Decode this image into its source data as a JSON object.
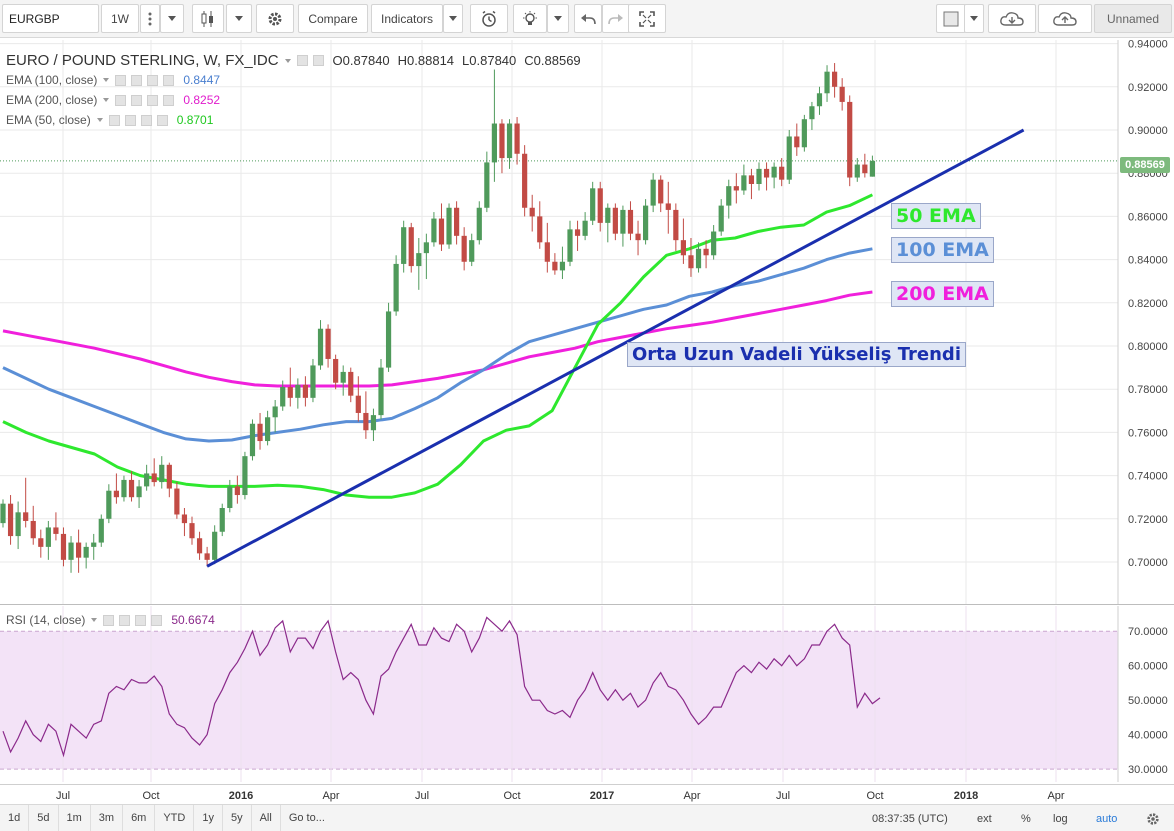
{
  "toolbar": {
    "symbol": "EURGBP",
    "interval": "1W",
    "compare_label": "Compare",
    "indicators_label": "Indicators",
    "layout_name": "Unnamed"
  },
  "legend": {
    "title": "EURO / POUND STERLING, W, FX_IDC",
    "open": "O0.87840",
    "high": "H0.88814",
    "low": "L0.87840",
    "close": "C0.88569",
    "ema100_label": "EMA (100, close)",
    "ema100_value": "0.8447",
    "ema200_label": "EMA (200, close)",
    "ema200_value": "0.8252",
    "ema50_label": "EMA (50, close)",
    "ema50_value": "0.8701",
    "rsi_label": "RSI (14, close)",
    "rsi_value": "50.6674"
  },
  "last_price_tag": "0.88569",
  "annotations": {
    "ema50": "50 EMA",
    "ema100": "100 EMA",
    "ema200": "200 EMA",
    "trend": "Orta Uzun Vadeli Yükseliş Trendi"
  },
  "colors": {
    "up": "#4f9a5b",
    "down": "#c24b45",
    "ema50": "#2ee82e",
    "ema100": "#5b8fd6",
    "ema200": "#f020dc",
    "trendline": "#1a2fae",
    "rsi_line": "#8b2a8b",
    "rsi_band": "#f3e3f7"
  },
  "chart_data": [
    {
      "type": "candlestick",
      "title": "EURO / POUND STERLING, W, FX_IDC",
      "x_tick_labels": [
        "Jul",
        "Oct",
        "2016",
        "Apr",
        "Jul",
        "Oct",
        "2017",
        "Apr",
        "Jul",
        "Oct",
        "2018",
        "Apr"
      ],
      "y_tick_labels": [
        "0.70000",
        "0.72000",
        "0.74000",
        "0.76000",
        "0.78000",
        "0.80000",
        "0.82000",
        "0.84000",
        "0.86000",
        "0.88000",
        "0.90000",
        "0.92000",
        "0.94000"
      ],
      "ylim": [
        0.69,
        0.945
      ],
      "ohlc": [
        [
          0.718,
          0.729,
          0.716,
          0.727
        ],
        [
          0.727,
          0.731,
          0.708,
          0.712
        ],
        [
          0.712,
          0.728,
          0.706,
          0.723
        ],
        [
          0.723,
          0.739,
          0.716,
          0.719
        ],
        [
          0.719,
          0.726,
          0.708,
          0.711
        ],
        [
          0.711,
          0.715,
          0.702,
          0.707
        ],
        [
          0.707,
          0.719,
          0.701,
          0.716
        ],
        [
          0.716,
          0.723,
          0.71,
          0.713
        ],
        [
          0.713,
          0.716,
          0.698,
          0.701
        ],
        [
          0.701,
          0.712,
          0.695,
          0.709
        ],
        [
          0.709,
          0.715,
          0.695,
          0.702
        ],
        [
          0.702,
          0.709,
          0.697,
          0.707
        ],
        [
          0.707,
          0.713,
          0.701,
          0.709
        ],
        [
          0.709,
          0.722,
          0.707,
          0.72
        ],
        [
          0.72,
          0.736,
          0.718,
          0.733
        ],
        [
          0.733,
          0.741,
          0.727,
          0.73
        ],
        [
          0.73,
          0.74,
          0.728,
          0.738
        ],
        [
          0.738,
          0.742,
          0.728,
          0.73
        ],
        [
          0.73,
          0.738,
          0.725,
          0.735
        ],
        [
          0.735,
          0.745,
          0.733,
          0.741
        ],
        [
          0.741,
          0.748,
          0.735,
          0.737
        ],
        [
          0.737,
          0.749,
          0.734,
          0.745
        ],
        [
          0.745,
          0.746,
          0.73,
          0.734
        ],
        [
          0.734,
          0.737,
          0.72,
          0.722
        ],
        [
          0.722,
          0.725,
          0.712,
          0.718
        ],
        [
          0.718,
          0.721,
          0.708,
          0.711
        ],
        [
          0.711,
          0.714,
          0.701,
          0.704
        ],
        [
          0.704,
          0.707,
          0.698,
          0.701
        ],
        [
          0.701,
          0.717,
          0.699,
          0.714
        ],
        [
          0.714,
          0.727,
          0.712,
          0.725
        ],
        [
          0.725,
          0.738,
          0.723,
          0.735
        ],
        [
          0.735,
          0.74,
          0.727,
          0.731
        ],
        [
          0.731,
          0.751,
          0.729,
          0.749
        ],
        [
          0.749,
          0.766,
          0.747,
          0.764
        ],
        [
          0.764,
          0.769,
          0.752,
          0.756
        ],
        [
          0.756,
          0.77,
          0.754,
          0.767
        ],
        [
          0.767,
          0.775,
          0.76,
          0.772
        ],
        [
          0.772,
          0.784,
          0.77,
          0.781
        ],
        [
          0.781,
          0.79,
          0.772,
          0.776
        ],
        [
          0.776,
          0.785,
          0.771,
          0.782
        ],
        [
          0.782,
          0.786,
          0.772,
          0.776
        ],
        [
          0.776,
          0.794,
          0.774,
          0.791
        ],
        [
          0.791,
          0.812,
          0.789,
          0.808
        ],
        [
          0.808,
          0.81,
          0.79,
          0.794
        ],
        [
          0.794,
          0.796,
          0.78,
          0.783
        ],
        [
          0.783,
          0.791,
          0.777,
          0.788
        ],
        [
          0.788,
          0.79,
          0.774,
          0.777
        ],
        [
          0.777,
          0.786,
          0.765,
          0.769
        ],
        [
          0.769,
          0.779,
          0.757,
          0.761
        ],
        [
          0.761,
          0.771,
          0.756,
          0.768
        ],
        [
          0.768,
          0.794,
          0.766,
          0.79
        ],
        [
          0.79,
          0.82,
          0.788,
          0.816
        ],
        [
          0.816,
          0.842,
          0.814,
          0.838
        ],
        [
          0.838,
          0.858,
          0.834,
          0.855
        ],
        [
          0.855,
          0.857,
          0.834,
          0.837
        ],
        [
          0.837,
          0.85,
          0.826,
          0.843
        ],
        [
          0.843,
          0.852,
          0.831,
          0.848
        ],
        [
          0.848,
          0.862,
          0.846,
          0.859
        ],
        [
          0.859,
          0.866,
          0.844,
          0.847
        ],
        [
          0.847,
          0.866,
          0.845,
          0.864
        ],
        [
          0.864,
          0.867,
          0.847,
          0.851
        ],
        [
          0.851,
          0.855,
          0.835,
          0.839
        ],
        [
          0.839,
          0.852,
          0.837,
          0.849
        ],
        [
          0.849,
          0.867,
          0.847,
          0.864
        ],
        [
          0.864,
          0.89,
          0.862,
          0.885
        ],
        [
          0.885,
          0.928,
          0.876,
          0.903
        ],
        [
          0.903,
          0.905,
          0.88,
          0.887
        ],
        [
          0.887,
          0.905,
          0.882,
          0.903
        ],
        [
          0.903,
          0.906,
          0.884,
          0.889
        ],
        [
          0.889,
          0.893,
          0.86,
          0.864
        ],
        [
          0.864,
          0.87,
          0.853,
          0.86
        ],
        [
          0.86,
          0.867,
          0.845,
          0.848
        ],
        [
          0.848,
          0.857,
          0.834,
          0.839
        ],
        [
          0.839,
          0.843,
          0.833,
          0.835
        ],
        [
          0.835,
          0.846,
          0.831,
          0.839
        ],
        [
          0.839,
          0.858,
          0.837,
          0.854
        ],
        [
          0.854,
          0.858,
          0.844,
          0.851
        ],
        [
          0.851,
          0.862,
          0.849,
          0.858
        ],
        [
          0.858,
          0.876,
          0.856,
          0.873
        ],
        [
          0.873,
          0.876,
          0.853,
          0.857
        ],
        [
          0.857,
          0.866,
          0.848,
          0.864
        ],
        [
          0.864,
          0.866,
          0.849,
          0.852
        ],
        [
          0.852,
          0.865,
          0.846,
          0.863
        ],
        [
          0.863,
          0.867,
          0.849,
          0.852
        ],
        [
          0.852,
          0.858,
          0.842,
          0.849
        ],
        [
          0.849,
          0.868,
          0.847,
          0.865
        ],
        [
          0.865,
          0.88,
          0.862,
          0.877
        ],
        [
          0.877,
          0.879,
          0.862,
          0.866
        ],
        [
          0.866,
          0.876,
          0.852,
          0.863
        ],
        [
          0.863,
          0.866,
          0.844,
          0.849
        ],
        [
          0.849,
          0.859,
          0.838,
          0.842
        ],
        [
          0.842,
          0.85,
          0.832,
          0.836
        ],
        [
          0.836,
          0.848,
          0.834,
          0.845
        ],
        [
          0.845,
          0.849,
          0.836,
          0.842
        ],
        [
          0.842,
          0.856,
          0.84,
          0.853
        ],
        [
          0.853,
          0.868,
          0.851,
          0.865
        ],
        [
          0.865,
          0.877,
          0.859,
          0.874
        ],
        [
          0.874,
          0.88,
          0.866,
          0.872
        ],
        [
          0.872,
          0.884,
          0.87,
          0.879
        ],
        [
          0.879,
          0.882,
          0.868,
          0.875
        ],
        [
          0.875,
          0.885,
          0.872,
          0.882
        ],
        [
          0.882,
          0.885,
          0.872,
          0.878
        ],
        [
          0.878,
          0.885,
          0.873,
          0.883
        ],
        [
          0.883,
          0.887,
          0.874,
          0.877
        ],
        [
          0.877,
          0.9,
          0.875,
          0.897
        ],
        [
          0.897,
          0.903,
          0.888,
          0.892
        ],
        [
          0.892,
          0.907,
          0.89,
          0.905
        ],
        [
          0.905,
          0.913,
          0.9,
          0.911
        ],
        [
          0.911,
          0.92,
          0.907,
          0.917
        ],
        [
          0.917,
          0.93,
          0.913,
          0.927
        ],
        [
          0.927,
          0.931,
          0.915,
          0.92
        ],
        [
          0.92,
          0.924,
          0.909,
          0.913
        ],
        [
          0.913,
          0.916,
          0.874,
          0.878
        ],
        [
          0.878,
          0.887,
          0.876,
          0.884
        ],
        [
          0.884,
          0.889,
          0.878,
          0.88
        ],
        [
          0.8784,
          0.88814,
          0.8784,
          0.88569
        ]
      ],
      "ema50": [
        0.765,
        0.76,
        0.756,
        0.753,
        0.75,
        0.744,
        0.74,
        0.738,
        0.736,
        0.735,
        0.735,
        0.735,
        0.7355,
        0.735,
        0.7335,
        0.731,
        0.73,
        0.73,
        0.732,
        0.736,
        0.745,
        0.756,
        0.761,
        0.763,
        0.77,
        0.79,
        0.81,
        0.82,
        0.832,
        0.842,
        0.845,
        0.849,
        0.85,
        0.853,
        0.855,
        0.856,
        0.862,
        0.865,
        0.87
      ],
      "ema100": [
        0.79,
        0.785,
        0.78,
        0.776,
        0.772,
        0.768,
        0.764,
        0.76,
        0.757,
        0.756,
        0.7565,
        0.7585,
        0.76,
        0.7615,
        0.7635,
        0.765,
        0.765,
        0.7665,
        0.771,
        0.776,
        0.783,
        0.789,
        0.796,
        0.802,
        0.805,
        0.808,
        0.811,
        0.814,
        0.817,
        0.819,
        0.823,
        0.825,
        0.828,
        0.83,
        0.833,
        0.836,
        0.84,
        0.843,
        0.845
      ],
      "ema200": [
        0.807,
        0.805,
        0.803,
        0.801,
        0.799,
        0.7965,
        0.794,
        0.791,
        0.788,
        0.7855,
        0.7835,
        0.782,
        0.7815,
        0.7815,
        0.7815,
        0.7815,
        0.7815,
        0.782,
        0.7835,
        0.785,
        0.787,
        0.789,
        0.792,
        0.795,
        0.797,
        0.799,
        0.802,
        0.804,
        0.806,
        0.808,
        0.8095,
        0.811,
        0.813,
        0.815,
        0.817,
        0.819,
        0.821,
        0.8235,
        0.825
      ],
      "trendline": [
        [
          27,
          0.698
        ],
        [
          135,
          0.9
        ]
      ]
    },
    {
      "type": "line",
      "title": "RSI (14, close)",
      "ylim": [
        28,
        75
      ],
      "y_tick_labels": [
        "30.0000",
        "40.0000",
        "50.0000",
        "60.0000",
        "70.0000"
      ],
      "band": [
        30,
        70
      ],
      "values": [
        41,
        35,
        39,
        44,
        40,
        38,
        43,
        41,
        34,
        43,
        41,
        39,
        43,
        44,
        52,
        54,
        53,
        56,
        55,
        55,
        57,
        54,
        46,
        43,
        42,
        39,
        37,
        40,
        49,
        53,
        58,
        61,
        65,
        70,
        63,
        66,
        71,
        73,
        64,
        68,
        68,
        65,
        70,
        73,
        64,
        56,
        58,
        56,
        50,
        46,
        57,
        59,
        64,
        68,
        72,
        66,
        66,
        71,
        68,
        67,
        72,
        70,
        64,
        68,
        74,
        72,
        70,
        73,
        69,
        54,
        50,
        50,
        47,
        46,
        47,
        45,
        50,
        53,
        58,
        53,
        50,
        53,
        50,
        52,
        48,
        50,
        55,
        58,
        54,
        53,
        50,
        46,
        43,
        45,
        48,
        48,
        53,
        58,
        60,
        58,
        61,
        59,
        62,
        60,
        63,
        60,
        62,
        66,
        66,
        70,
        72,
        68,
        66,
        48,
        52,
        49,
        50.67
      ]
    }
  ]
}
